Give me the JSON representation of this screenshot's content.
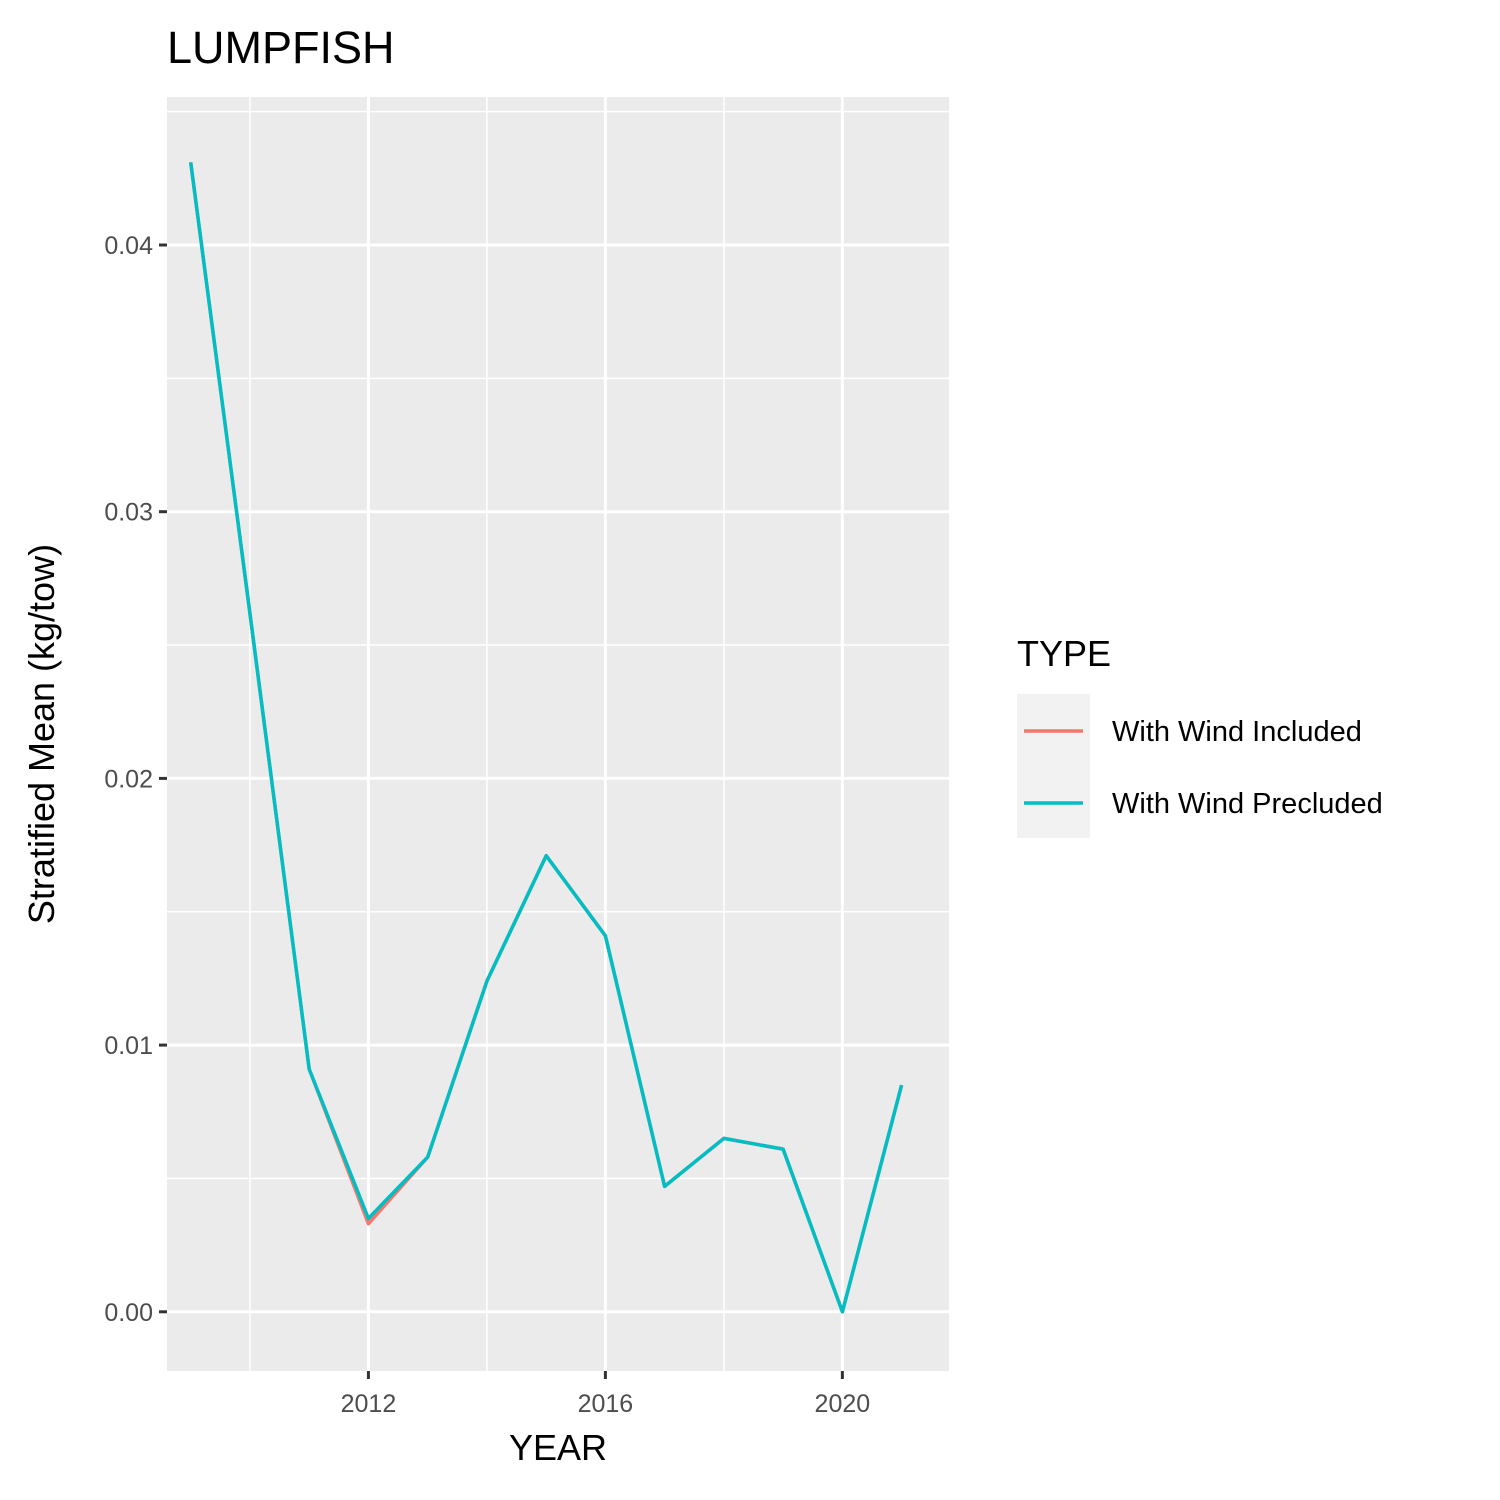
{
  "chart_data": {
    "type": "line",
    "title": "LUMPFISH",
    "xlabel": "YEAR",
    "ylabel": "Stratified Mean (kg/tow)",
    "xlim": [
      2008.6,
      2021.8
    ],
    "ylim": [
      -0.00222,
      0.04555
    ],
    "x_ticks": [
      2012,
      2016,
      2020
    ],
    "x_minor_ticks": [
      2010,
      2014,
      2018
    ],
    "y_ticks": [
      0.0,
      0.01,
      0.02,
      0.03,
      0.04
    ],
    "y_tick_labels": [
      "0.00",
      "0.01",
      "0.02",
      "0.03",
      "0.04"
    ],
    "y_minor_ticks": [
      0.005,
      0.015,
      0.025,
      0.035,
      0.045
    ],
    "x_tick_labels": [
      "2012",
      "2016",
      "2020"
    ],
    "grid": true,
    "legend": {
      "title": "TYPE",
      "placement": "right"
    },
    "x": [
      2009,
      2010,
      2011,
      2012,
      2013,
      2014,
      2015,
      2016,
      2017,
      2018,
      2019,
      2020,
      2021
    ],
    "series": [
      {
        "name": "With Wind Included",
        "color": "#F8766D",
        "values": [
          0.0431,
          0.0262,
          0.0091,
          0.0033,
          0.0058,
          0.0124,
          0.0171,
          0.0141,
          0.0047,
          0.0065,
          0.0061,
          0.0,
          0.0085
        ]
      },
      {
        "name": "With Wind Precluded",
        "color": "#00BFC4",
        "values": [
          0.0431,
          0.0262,
          0.0091,
          0.0035,
          0.0058,
          0.0124,
          0.0171,
          0.0141,
          0.0047,
          0.0065,
          0.0061,
          0.0,
          0.0085
        ]
      }
    ]
  }
}
